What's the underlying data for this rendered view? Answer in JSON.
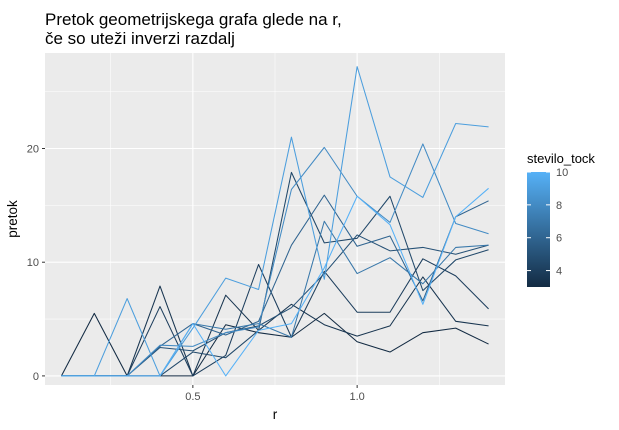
{
  "chart_data": {
    "type": "line",
    "title_lines": [
      "Pretok geometrijskega grafa glede na r,",
      "če so uteži inverzi razdalj"
    ],
    "xlabel": "r",
    "ylabel": "pretok",
    "xlim": [
      0.05,
      1.45
    ],
    "ylim": [
      -0.8,
      28.4
    ],
    "x_ticks": [
      0.5,
      1.0
    ],
    "x_tick_labels": [
      "0.5",
      "1.0"
    ],
    "y_ticks": [
      0,
      10,
      20
    ],
    "y_tick_labels": [
      "0",
      "10",
      "20"
    ],
    "grid": true,
    "legend": {
      "title": "stevilo_tock",
      "position": "right",
      "type": "colorbar",
      "range": [
        3,
        10
      ],
      "ticks": [
        4,
        6,
        8,
        10
      ],
      "tick_labels": [
        "4",
        "6",
        "8",
        "10"
      ],
      "colors": {
        "low": "#132B43",
        "high": "#56B1F7"
      }
    },
    "x": [
      0.1,
      0.2,
      0.3,
      0.4,
      0.5,
      0.6,
      0.7,
      0.8,
      0.9,
      1.0,
      1.1,
      1.2,
      1.3,
      1.4
    ],
    "series": [
      {
        "color_value": 3,
        "values": [
          0,
          5.5,
          0,
          0,
          0,
          4.5,
          3.8,
          3.4,
          5.5,
          3.0,
          2.1,
          3.8,
          4.2,
          2.8
        ]
      },
      {
        "color_value": 3.5,
        "values": [
          0,
          0,
          0,
          7.9,
          0,
          7.1,
          4.0,
          6.3,
          4.5,
          3.5,
          4.4,
          8.7,
          4.8,
          4.4
        ]
      },
      {
        "color_value": 4,
        "values": [
          0,
          0,
          0,
          6.1,
          0,
          1.8,
          9.8,
          3.4,
          9.2,
          5.6,
          5.6,
          10.3,
          8.8,
          5.9
        ]
      },
      {
        "color_value": 4.5,
        "values": [
          0,
          0,
          0,
          0,
          2.1,
          1.6,
          4.0,
          17.9,
          11.7,
          12.1,
          15.8,
          7.5,
          10.2,
          11.1
        ]
      },
      {
        "color_value": 5,
        "values": [
          0,
          0,
          0,
          2.5,
          2.2,
          3.8,
          4.4,
          6.0,
          9.0,
          12.4,
          11.0,
          11.3,
          10.7,
          11.5
        ]
      },
      {
        "color_value": 6,
        "values": [
          0,
          0,
          0,
          2.6,
          4.6,
          3.6,
          4.8,
          11.5,
          15.9,
          11.4,
          12.3,
          6.6,
          14.0,
          15.4
        ]
      },
      {
        "color_value": 7,
        "values": [
          0,
          0,
          0,
          0,
          4.6,
          4.1,
          4.6,
          3.4,
          13.6,
          9.0,
          10.4,
          8.1,
          11.3,
          11.5
        ]
      },
      {
        "color_value": 8,
        "values": [
          0,
          0,
          0,
          2.7,
          2.6,
          3.8,
          4.3,
          16.4,
          20.1,
          15.8,
          13.5,
          20.4,
          13.4,
          12.5
        ]
      },
      {
        "color_value": 9,
        "values": [
          0,
          0,
          6.8,
          0,
          4.2,
          8.6,
          7.6,
          21.0,
          8.5,
          27.2,
          17.5,
          15.7,
          22.2,
          21.9
        ]
      },
      {
        "color_value": 10,
        "values": [
          0,
          0,
          0,
          0,
          4.6,
          0,
          4.0,
          4.6,
          9.5,
          15.8,
          13.3,
          6.3,
          14.0,
          16.5
        ]
      }
    ]
  }
}
